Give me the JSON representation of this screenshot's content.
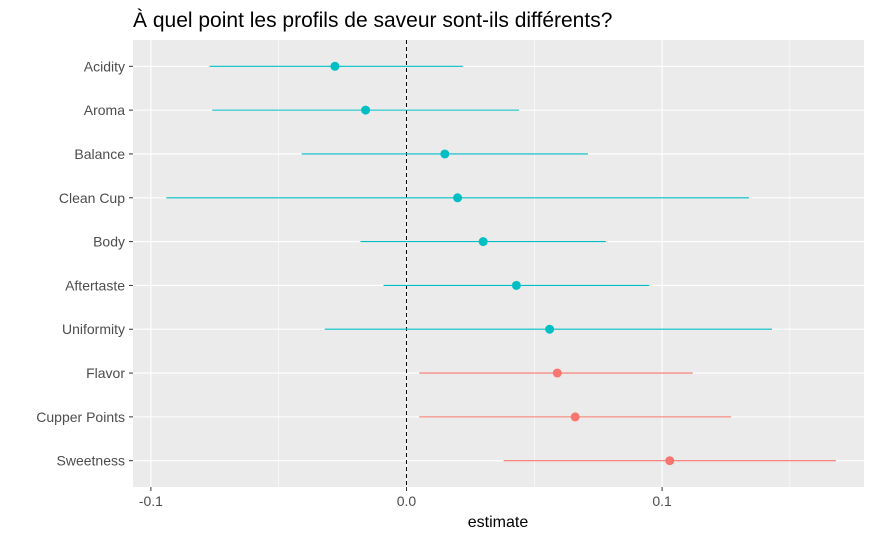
{
  "chart_data": {
    "type": "scatter",
    "title": "À quel point les profils de saveur sont-ils différents?",
    "xlabel": "estimate",
    "ylabel": "",
    "xlim": [
      -0.107,
      0.179
    ],
    "x_ticks": [
      -0.1,
      0.0,
      0.1
    ],
    "x_tick_labels": [
      "-0.1",
      "0.0",
      "0.1"
    ],
    "reference_line": {
      "x": 0,
      "style": "dashed"
    },
    "grid": true,
    "legend": "none",
    "colors": {
      "group_a": "#00BFC4",
      "group_b": "#F8766D"
    },
    "categories": [
      "Acidity",
      "Aroma",
      "Balance",
      "Clean Cup",
      "Body",
      "Aftertaste",
      "Uniformity",
      "Flavor",
      "Cupper Points",
      "Sweetness"
    ],
    "points": [
      {
        "label": "Acidity",
        "estimate": -0.028,
        "low": -0.077,
        "high": 0.022,
        "group": "group_a"
      },
      {
        "label": "Aroma",
        "estimate": -0.016,
        "low": -0.076,
        "high": 0.044,
        "group": "group_a"
      },
      {
        "label": "Balance",
        "estimate": 0.015,
        "low": -0.041,
        "high": 0.071,
        "group": "group_a"
      },
      {
        "label": "Clean Cup",
        "estimate": 0.02,
        "low": -0.094,
        "high": 0.134,
        "group": "group_a"
      },
      {
        "label": "Body",
        "estimate": 0.03,
        "low": -0.018,
        "high": 0.078,
        "group": "group_a"
      },
      {
        "label": "Aftertaste",
        "estimate": 0.043,
        "low": -0.009,
        "high": 0.095,
        "group": "group_a"
      },
      {
        "label": "Uniformity",
        "estimate": 0.056,
        "low": -0.032,
        "high": 0.143,
        "group": "group_a"
      },
      {
        "label": "Flavor",
        "estimate": 0.059,
        "low": 0.005,
        "high": 0.112,
        "group": "group_b"
      },
      {
        "label": "Cupper Points",
        "estimate": 0.066,
        "low": 0.005,
        "high": 0.127,
        "group": "group_b"
      },
      {
        "label": "Sweetness",
        "estimate": 0.103,
        "low": 0.038,
        "high": 0.168,
        "group": "group_b"
      }
    ]
  }
}
